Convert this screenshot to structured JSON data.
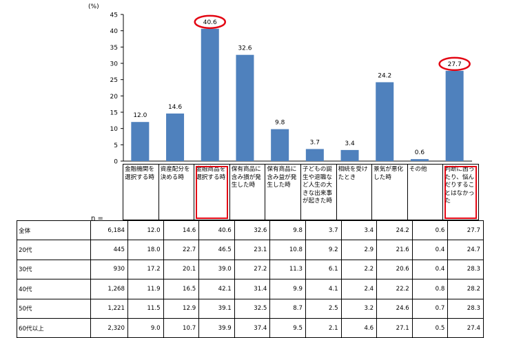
{
  "chart_data": {
    "type": "bar",
    "y_unit": "(%)",
    "ylim": [
      0,
      45
    ],
    "yticks": [
      0,
      5,
      10,
      15,
      20,
      25,
      30,
      35,
      40,
      45
    ],
    "categories": [
      "金融機関を選択する時",
      "資産配分を決める時",
      "金融商品を選択する時",
      "保有商品に含み損が発生した時",
      "保有商品に含み益が発生した時",
      "子どもの誕生や退職など人生の大きな出来事が起きた時",
      "相続を受けたとき",
      "景気が悪化した時",
      "その他",
      "判断に困ったり、悩んだりすることはなかった"
    ],
    "values": [
      12.0,
      14.6,
      40.6,
      32.6,
      9.8,
      3.7,
      3.4,
      24.2,
      0.6,
      27.7
    ],
    "value_labels": [
      "12.0",
      "14.6",
      "40.6",
      "32.6",
      "9.8",
      "3.7",
      "3.4",
      "24.2",
      "0.6",
      "27.7"
    ],
    "bar_color": "#4f81bd",
    "highlight_color": "#e30613",
    "highlighted_categories": [
      2,
      9
    ],
    "grid": false,
    "table": {
      "n_label": "n =",
      "rows": [
        {
          "label": "全体",
          "n": "6,184",
          "values": [
            "12.0",
            "14.6",
            "40.6",
            "32.6",
            "9.8",
            "3.7",
            "3.4",
            "24.2",
            "0.6",
            "27.7"
          ]
        },
        {
          "label": "20代",
          "n": "445",
          "values": [
            "18.0",
            "22.7",
            "46.5",
            "23.1",
            "10.8",
            "9.2",
            "2.9",
            "21.6",
            "0.4",
            "24.7"
          ]
        },
        {
          "label": "30代",
          "n": "930",
          "values": [
            "17.2",
            "20.1",
            "39.0",
            "27.2",
            "11.3",
            "6.1",
            "2.2",
            "20.6",
            "0.4",
            "28.3"
          ]
        },
        {
          "label": "40代",
          "n": "1,268",
          "values": [
            "11.9",
            "16.5",
            "42.1",
            "31.4",
            "9.9",
            "4.1",
            "2.4",
            "22.2",
            "0.8",
            "28.2"
          ]
        },
        {
          "label": "50代",
          "n": "1,221",
          "values": [
            "11.5",
            "12.9",
            "39.1",
            "32.5",
            "8.7",
            "2.5",
            "3.2",
            "24.6",
            "0.7",
            "28.3"
          ]
        },
        {
          "label": "60代以上",
          "n": "2,320",
          "values": [
            "9.0",
            "10.7",
            "39.9",
            "37.4",
            "9.5",
            "2.1",
            "4.6",
            "27.1",
            "0.5",
            "27.4"
          ]
        }
      ]
    }
  }
}
